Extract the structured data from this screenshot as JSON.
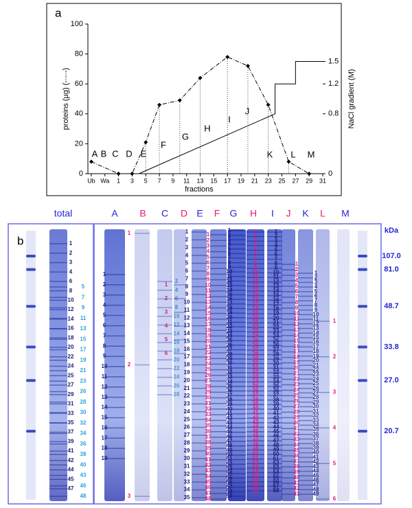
{
  "chart_data": {
    "type": "line",
    "panel_label": "a",
    "x_label": "fractions",
    "y_label": "proteins (µg) (-·-·-)",
    "y2_label": "NaCl gradient (M)",
    "xlim": [
      -3.5,
      31
    ],
    "xticks": [
      {
        "value": -3,
        "label": "Ub"
      },
      {
        "value": -1,
        "label": "Wa"
      },
      1,
      3,
      5,
      7,
      9,
      11,
      13,
      15,
      17,
      19,
      21,
      23,
      25,
      27,
      29,
      31
    ],
    "ylim": [
      0,
      100
    ],
    "yticks": [
      0,
      20,
      40,
      60,
      80,
      100
    ],
    "y2lim": [
      0,
      2
    ],
    "y2ticks": [
      0,
      0.8,
      1.2,
      1.5
    ],
    "series": [
      {
        "color": "#000000",
        "marker": "diamond",
        "style": "dashdot",
        "x": [
          -3,
          1,
          3,
          5,
          7,
          10,
          13,
          17,
          20,
          23,
          26,
          29
        ],
        "values": [
          8,
          0,
          0,
          21,
          46,
          49,
          64,
          78,
          72,
          46,
          8,
          0
        ]
      },
      {
        "color": "#000000",
        "style": "solid",
        "axis": "y2",
        "x": [
          4,
          24,
          24,
          27,
          27,
          31
        ],
        "values": [
          0,
          0.8,
          1.2,
          1.2,
          1.5,
          1.5
        ]
      }
    ],
    "region_labels": [
      "A",
      "B",
      "C",
      "D",
      "E",
      "F",
      "G",
      "H",
      "I",
      "J",
      "K",
      "L",
      "M"
    ]
  },
  "gel": {
    "panel_label": "b",
    "unit": "kDa",
    "markers": [
      {
        "value": 107,
        "label": "107.0"
      },
      {
        "value": 81,
        "label": "81.0"
      },
      48.7,
      33.8,
      {
        "value": 27,
        "label": "27.0"
      },
      20.7
    ],
    "lanes": [
      {
        "name": "total",
        "color": "#2424d8",
        "columns": [
          {
            "color": "#1a1a7a",
            "labels": [
              1,
              2,
              3,
              4,
              6,
              8,
              10,
              12,
              14,
              16,
              18,
              20,
              22,
              24,
              25,
              27,
              29,
              31,
              33,
              35,
              37,
              39,
              41,
              42,
              44,
              45,
              47
            ]
          },
          {
            "color": "#2aa0e0",
            "labels": [
              5,
              7,
              9,
              11,
              13,
              15,
              17,
              19,
              21,
              23,
              26,
              28,
              30,
              32,
              34,
              36,
              38,
              40,
              43,
              46,
              48
            ]
          }
        ]
      },
      {
        "name": "A",
        "color": "#2424d8",
        "columns": [
          {
            "color": "#1a1a7a",
            "labels": [
              1,
              2,
              3,
              4,
              5,
              6,
              7,
              8,
              9,
              10,
              11,
              12,
              13,
              14,
              15,
              16,
              17,
              18,
              19
            ]
          }
        ]
      },
      {
        "name": "B",
        "color": "#e0197d",
        "columns": [
          {
            "color": "#e0197d",
            "labels": [
              1,
              2,
              3
            ]
          }
        ]
      },
      {
        "name": "C",
        "color": "#2424d8",
        "columns": [
          {
            "color": "#2aa0e0",
            "labels": [
              2,
              4,
              6,
              8,
              10,
              12,
              14,
              16,
              18,
              20,
              22,
              24,
              26,
              28
            ]
          }
        ]
      },
      {
        "name": "D",
        "color": "#e0197d",
        "columns": [
          {
            "color": "#e0197d",
            "labels": [
              1,
              2,
              3,
              4,
              5,
              6
            ]
          }
        ]
      },
      {
        "name": "E",
        "color": "#2424d8",
        "columns": [
          {
            "color": "#1a1a7a",
            "labels": [
              1,
              2,
              3,
              4,
              5,
              6,
              7,
              8,
              9,
              10,
              11,
              12,
              13,
              14,
              15,
              16,
              17,
              18,
              19,
              20,
              21,
              22,
              23,
              24,
              25,
              26,
              27,
              28,
              29,
              30,
              31,
              32,
              33,
              34,
              35
            ]
          }
        ]
      },
      {
        "name": "F",
        "color": "#e0197d",
        "columns": [
          {
            "color": "#e0197d",
            "labels": [
              1,
              2,
              3,
              4,
              5,
              6,
              7,
              8,
              9,
              10,
              11,
              12,
              13,
              14,
              15,
              16,
              17,
              18,
              19,
              20,
              21,
              22,
              23,
              24,
              25,
              26,
              27,
              28,
              29,
              30,
              31,
              32,
              33,
              34,
              35,
              36,
              37,
              38,
              39,
              40,
              41,
              42,
              43,
              44,
              45,
              46,
              47,
              48
            ]
          }
        ]
      },
      {
        "name": "G",
        "color": "#2424d8",
        "columns": [
          {
            "color": "#1a1a7a",
            "labels": [
              1,
              2,
              3,
              4,
              5,
              6,
              7,
              8,
              9,
              10,
              11,
              12,
              13,
              14,
              15,
              16,
              17,
              18,
              19,
              20,
              21,
              22,
              23,
              24,
              25,
              26,
              27,
              28,
              29,
              30,
              31,
              32,
              33,
              34,
              35,
              36,
              37,
              38,
              39,
              40,
              41,
              42,
              43,
              44,
              45,
              46,
              47,
              48,
              49,
              50,
              51,
              52,
              53,
              54,
              55,
              56,
              57,
              58,
              59
            ]
          }
        ]
      },
      {
        "name": "H",
        "color": "#e0197d",
        "columns": [
          {
            "color": "#e0197d",
            "labels": [
              1,
              2,
              3,
              4,
              5,
              6,
              7,
              8,
              9,
              10,
              11,
              12,
              13,
              14,
              15,
              16,
              17,
              18,
              19,
              20,
              21,
              22,
              23,
              24,
              25,
              26,
              27,
              28,
              29,
              30,
              31,
              32,
              33,
              34,
              35,
              36,
              37,
              38,
              39,
              40,
              41,
              42,
              43,
              44,
              45,
              46,
              47,
              48,
              49,
              50,
              51,
              52,
              53,
              54,
              55,
              56,
              57,
              58
            ]
          }
        ]
      },
      {
        "name": "I",
        "color": "#2424d8",
        "columns": [
          {
            "color": "#1a1a7a",
            "labels": [
              1,
              2,
              3,
              4,
              5,
              6,
              7,
              8,
              9,
              10,
              11,
              12,
              13,
              14,
              15,
              16,
              17,
              18,
              19,
              20,
              21,
              22,
              23,
              24,
              25,
              26,
              27,
              28,
              29,
              30,
              31,
              32,
              33,
              34,
              35,
              36,
              37,
              38,
              39,
              40,
              41,
              42,
              43,
              44,
              45,
              46,
              47,
              48,
              49,
              50,
              51,
              52,
              53,
              54,
              55,
              56,
              57,
              58
            ]
          }
        ]
      },
      {
        "name": "J",
        "color": "#e0197d",
        "columns": [
          {
            "color": "#e0197d",
            "labels": [
              1,
              2,
              3,
              4,
              5,
              6,
              7,
              8,
              9,
              10,
              11,
              12,
              13,
              14,
              15,
              16,
              17,
              18,
              19,
              20,
              21,
              22,
              23,
              24,
              25,
              26,
              27,
              28,
              29,
              30,
              31,
              32,
              33,
              34,
              35,
              36,
              37,
              38,
              39,
              40,
              41,
              42,
              43
            ]
          }
        ]
      },
      {
        "name": "K",
        "color": "#2424d8",
        "columns": [
          {
            "color": "#1a1a7a",
            "labels": [
              1,
              2,
              3,
              4,
              5,
              6,
              7,
              8,
              9,
              10,
              11,
              12,
              13,
              14,
              15,
              16,
              17,
              18,
              19,
              20,
              21,
              22,
              23,
              24,
              25,
              26,
              27,
              28,
              29,
              30,
              31,
              32,
              33,
              34,
              35,
              36,
              37,
              38,
              39,
              40,
              41,
              42,
              43,
              44,
              45,
              46,
              47,
              48,
              49
            ]
          }
        ]
      },
      {
        "name": "L",
        "color": "#e0197d",
        "columns": [
          {
            "color": "#e0197d",
            "labels": [
              1,
              2,
              3,
              4,
              5,
              6
            ]
          }
        ]
      },
      {
        "name": "M",
        "color": "#2424d8",
        "columns": []
      }
    ]
  }
}
